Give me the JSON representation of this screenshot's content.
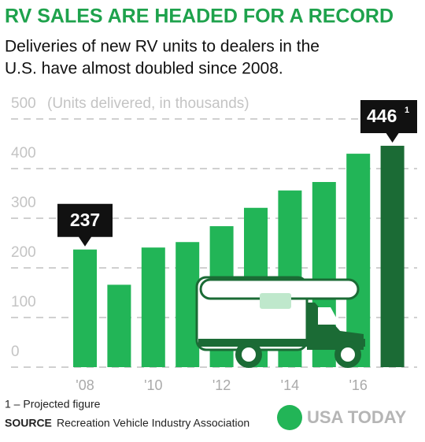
{
  "chart_data": {
    "type": "bar",
    "title": "RV SALES ARE HEADED FOR A RECORD",
    "subtitle": [
      "Deliveries of new RV units to dealers in the",
      "U.S. have almost doubled since 2008."
    ],
    "ylabel": "(Units delivered, in thousands)",
    "categories": [
      "'08",
      null,
      "'10",
      null,
      "'12",
      null,
      "'14",
      null,
      "'16",
      null
    ],
    "values": [
      237,
      166,
      241,
      252,
      284,
      321,
      356,
      373,
      430,
      446
    ],
    "value_labels": [
      "237",
      null,
      null,
      null,
      null,
      null,
      null,
      null,
      null,
      "446"
    ],
    "value_label_marks": [
      null,
      null,
      null,
      null,
      null,
      null,
      null,
      null,
      null,
      "1"
    ],
    "colors": [
      "#22b557",
      "#22b557",
      "#22b557",
      "#22b557",
      "#22b557",
      "#22b557",
      "#22b557",
      "#22b557",
      "#22b557",
      "#1b6b35"
    ],
    "ylim": [
      0,
      500
    ],
    "yticks": [
      0,
      100,
      200,
      300,
      400,
      500
    ],
    "grid": true,
    "footnote": "1 – Projected figure",
    "source_label": "SOURCE",
    "source": "Recreation Vehicle Industry Association",
    "brand": "USA TODAY"
  }
}
